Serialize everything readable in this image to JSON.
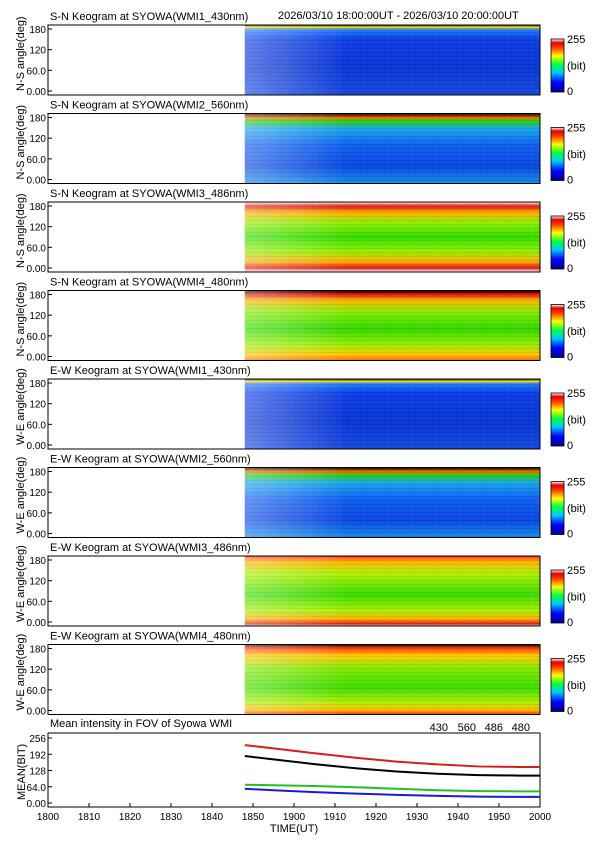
{
  "header": {
    "time_range": "2026/03/10 18:00:00UT - 2026/03/10 20:00:00UT"
  },
  "colorbar": {
    "max_label": "255",
    "unit_label": "(bit)",
    "min_label": "0"
  },
  "keogram_yticks": [
    "180",
    "120",
    "60.0",
    "0.00"
  ],
  "keograms": [
    {
      "title": "S-N Keogram at SYOWA(WMI1_430nm)",
      "ylabel": "N-S angle(deg)",
      "style": "blue_dim"
    },
    {
      "title": "S-N Keogram at SYOWA(WMI2_560nm)",
      "ylabel": "N-S angle(deg)",
      "style": "blue_mid"
    },
    {
      "title": "S-N Keogram at SYOWA(WMI3_486nm)",
      "ylabel": "N-S angle(deg)",
      "style": "bright"
    },
    {
      "title": "S-N Keogram at SYOWA(WMI4_480nm)",
      "ylabel": "N-S angle(deg)",
      "style": "bright_mid"
    },
    {
      "title": "E-W Keogram at SYOWA(WMI1_430nm)",
      "ylabel": "W-E angle(deg)",
      "style": "blue_dim"
    },
    {
      "title": "E-W Keogram at SYOWA(WMI2_560nm)",
      "ylabel": "W-E angle(deg)",
      "style": "blue_mid"
    },
    {
      "title": "E-W Keogram at SYOWA(WMI3_486nm)",
      "ylabel": "W-E angle(deg)",
      "style": "bright_skew"
    },
    {
      "title": "E-W Keogram at SYOWA(WMI4_480nm)",
      "ylabel": "W-E angle(deg)",
      "style": "bright_mid_skew"
    }
  ],
  "chart_data": {
    "type": "line",
    "title": "Mean intensity in FOV of Syowa WMI",
    "xlabel": "TIME(UT)",
    "ylabel": "MEAN(BIT)",
    "x_ticks": [
      "1800",
      "1810",
      "1820",
      "1830",
      "1840",
      "1850",
      "1900",
      "1910",
      "1920",
      "1930",
      "1940",
      "1950",
      "2000"
    ],
    "y_ticks": [
      "256",
      "192",
      "128",
      "64.0",
      "0.00"
    ],
    "ylim": [
      0,
      256
    ],
    "x_minutes": [
      48,
      55,
      65,
      75,
      85,
      95,
      105,
      115,
      120
    ],
    "series": [
      {
        "name": "430",
        "color": "#1a1adb",
        "values": [
          56,
          50,
          43,
          37,
          32,
          28,
          25,
          24,
          24
        ]
      },
      {
        "name": "560",
        "color": "#22c022",
        "values": [
          72,
          70,
          67,
          62,
          56,
          50,
          47,
          46,
          46
        ]
      },
      {
        "name": "486",
        "color": "#d81c1c",
        "values": [
          228,
          215,
          196,
          178,
          163,
          152,
          144,
          142,
          142
        ]
      },
      {
        "name": "480",
        "color": "#000000",
        "values": [
          185,
          172,
          153,
          137,
          124,
          115,
          110,
          108,
          108
        ]
      }
    ]
  }
}
